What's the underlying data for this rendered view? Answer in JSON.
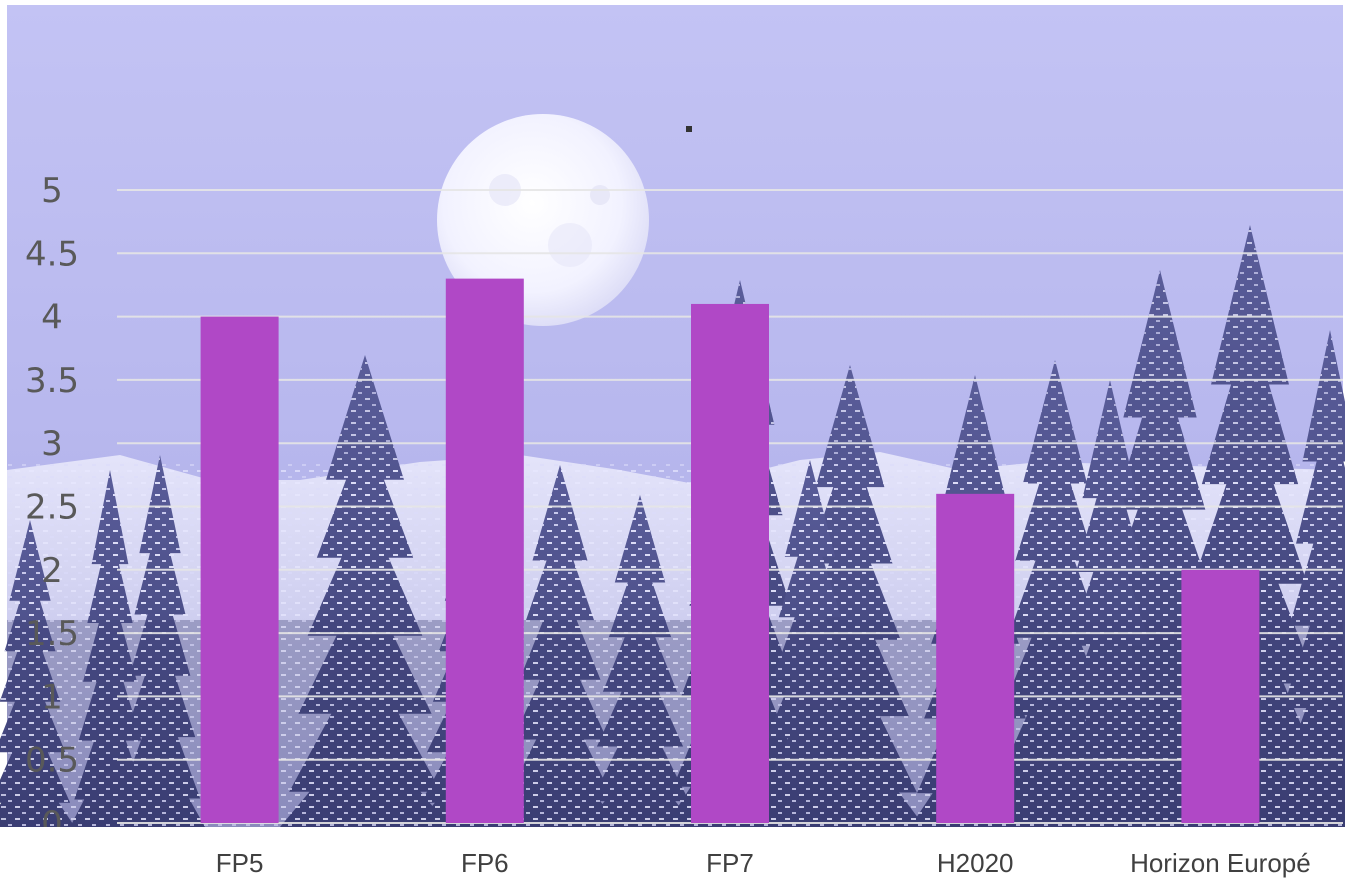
{
  "chart_data": {
    "type": "bar",
    "categories": [
      "FP5",
      "FP6",
      "FP7",
      "H2020",
      "Horizon Europé"
    ],
    "values": [
      4.0,
      4.3,
      4.1,
      2.6,
      2.0
    ],
    "title": "",
    "xlabel": "",
    "ylabel": "",
    "ylim": [
      0,
      5
    ],
    "yticks": [
      "0",
      "0.5",
      "1",
      "1.5",
      "2",
      "2.5",
      "3",
      "3.5",
      "4",
      "4.5",
      "5"
    ],
    "grid": true,
    "legend": "none",
    "bar_color": "#b048c6",
    "background": "winter forest with full moon, lavender sky"
  }
}
